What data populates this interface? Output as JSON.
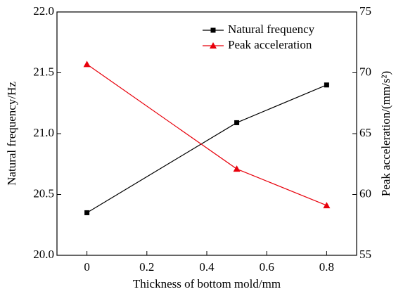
{
  "chart_data": {
    "type": "line",
    "xlabel": "Thickness of bottom mold/mm",
    "ylabel": "Natural frequency/Hz",
    "y2label": "Peak acceleration/(mm/s²)",
    "x": [
      0,
      0.5,
      0.8
    ],
    "xlim": [
      -0.1,
      0.9
    ],
    "xticks": [
      0,
      0.2,
      0.4,
      0.6,
      0.8
    ],
    "ylim": [
      20.0,
      22.0
    ],
    "yticks": [
      {
        "value": 20.0,
        "label": "20.0"
      },
      {
        "value": 20.5,
        "label": "20.5"
      },
      {
        "value": 21.0,
        "label": "21.0"
      },
      {
        "value": 21.5,
        "label": "21.5"
      },
      {
        "value": 22.0,
        "label": "22.0"
      }
    ],
    "y2lim": [
      55,
      75
    ],
    "y2ticks": [
      55,
      60,
      65,
      70,
      75
    ],
    "legend": "upper right",
    "series": [
      {
        "name": "Natural frequency",
        "color": "#000000",
        "marker": "square",
        "values": [
          20.35,
          21.09,
          21.4
        ]
      },
      {
        "name": "Peak acceleration",
        "color": "#e8000b",
        "marker": "triangle",
        "axis": "y2",
        "values": [
          70.7,
          62.1,
          59.1
        ]
      }
    ]
  }
}
